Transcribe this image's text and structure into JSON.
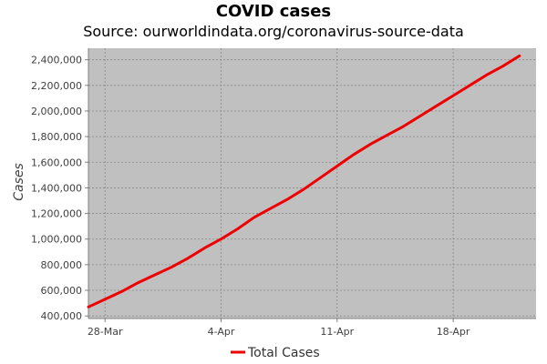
{
  "chart_data": {
    "type": "line",
    "title": "COVID cases",
    "subtitle": "Source: ourworldindata.org/coronavirus-source-data",
    "xlabel": "",
    "ylabel": "Cases",
    "x": [
      "2020-03-27",
      "2020-03-28",
      "2020-03-29",
      "2020-03-30",
      "2020-03-31",
      "2020-04-01",
      "2020-04-02",
      "2020-04-03",
      "2020-04-04",
      "2020-04-05",
      "2020-04-06",
      "2020-04-07",
      "2020-04-08",
      "2020-04-09",
      "2020-04-10",
      "2020-04-11",
      "2020-04-12",
      "2020-04-13",
      "2020-04-14",
      "2020-04-15",
      "2020-04-16",
      "2020-04-17",
      "2020-04-18",
      "2020-04-19",
      "2020-04-20",
      "2020-04-21",
      "2020-04-22"
    ],
    "x_ticks": [
      "2020-03-28",
      "2020-04-04",
      "2020-04-11",
      "2020-04-18"
    ],
    "x_tick_labels": [
      "28-Mar",
      "4-Apr",
      "11-Apr",
      "18-Apr"
    ],
    "xlim": [
      "2020-03-27",
      "2020-04-23"
    ],
    "series": [
      {
        "name": "Total Cases",
        "color": "#ee0000",
        "values": [
          470000,
          530000,
          590000,
          660000,
          720000,
          780000,
          850000,
          930000,
          1000000,
          1080000,
          1170000,
          1240000,
          1310000,
          1390000,
          1480000,
          1570000,
          1660000,
          1740000,
          1810000,
          1880000,
          1960000,
          2040000,
          2120000,
          2200000,
          2280000,
          2350000,
          2430000
        ]
      }
    ],
    "y_ticks": [
      400000,
      600000,
      800000,
      1000000,
      1200000,
      1400000,
      1600000,
      1800000,
      2000000,
      2200000,
      2400000
    ],
    "y_tick_labels": [
      "400,000",
      "600,000",
      "800,000",
      "1,000,000",
      "1,200,000",
      "1,400,000",
      "1,600,000",
      "1,800,000",
      "2,000,000",
      "2,200,000",
      "2,400,000"
    ],
    "ylim": [
      380000,
      2490000
    ],
    "grid": true,
    "legend_position": "bottom",
    "colors": {
      "plot_background": "#c0c0c0",
      "grid": "#888888",
      "axis": "#808080"
    }
  }
}
